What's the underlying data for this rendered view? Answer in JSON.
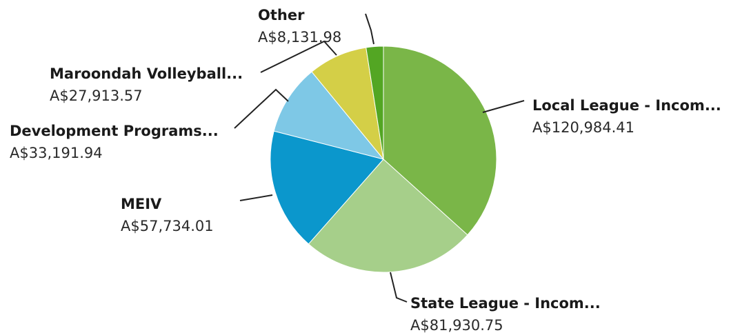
{
  "chart_data": {
    "type": "pie",
    "currency_prefix": "A$",
    "slices": [
      {
        "label": "Local League - Incom...",
        "value": 120984.41,
        "value_label": "A$120,984.41",
        "color": "#7ab648"
      },
      {
        "label": "State League - Incom...",
        "value": 81930.75,
        "value_label": "A$81,930.75",
        "color": "#a6cf8a"
      },
      {
        "label": "MEIV",
        "value": 57734.01,
        "value_label": "A$57,734.01",
        "color": "#0b97cc"
      },
      {
        "label": "Development Programs...",
        "value": 33191.94,
        "value_label": "A$33,191.94",
        "color": "#7ec8e6"
      },
      {
        "label": "Maroondah Volleyball...",
        "value": 27913.57,
        "value_label": "A$27,913.57",
        "color": "#d4cf47"
      },
      {
        "label": "Other",
        "value": 8131.98,
        "value_label": "A$8,131.98",
        "color": "#53a623"
      }
    ],
    "start_angle": "12 o'clock",
    "direction": "clockwise",
    "legend": "none"
  }
}
